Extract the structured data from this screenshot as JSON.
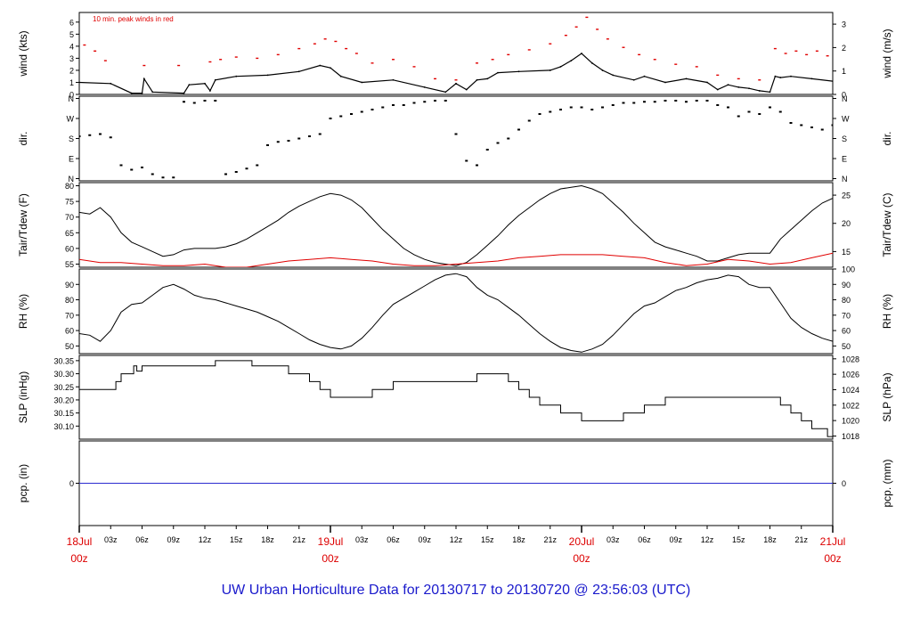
{
  "title": "UW Urban Horticulture Data for 20130717  to  20130720 @ 23:56:03  (UTC)",
  "colors": {
    "frame": "#000000",
    "data": "#000000",
    "peak": "#e00000",
    "dewpoint": "#e00000",
    "precip": "#2b2bd0",
    "date_label": "#dd0000",
    "title": "#1a1acc"
  },
  "x_axis": {
    "range_hours": [
      0,
      72
    ],
    "hour_ticks": [
      {
        "h": 3,
        "label": "03z"
      },
      {
        "h": 6,
        "label": "06z"
      },
      {
        "h": 9,
        "label": "09z"
      },
      {
        "h": 12,
        "label": "12z"
      },
      {
        "h": 15,
        "label": "15z"
      },
      {
        "h": 18,
        "label": "18z"
      },
      {
        "h": 21,
        "label": "21z"
      },
      {
        "h": 27,
        "label": "03z"
      },
      {
        "h": 30,
        "label": "06z"
      },
      {
        "h": 33,
        "label": "09z"
      },
      {
        "h": 36,
        "label": "12z"
      },
      {
        "h": 39,
        "label": "15z"
      },
      {
        "h": 42,
        "label": "18z"
      },
      {
        "h": 45,
        "label": "21z"
      },
      {
        "h": 51,
        "label": "03z"
      },
      {
        "h": 54,
        "label": "06z"
      },
      {
        "h": 57,
        "label": "09z"
      },
      {
        "h": 60,
        "label": "12z"
      },
      {
        "h": 63,
        "label": "15z"
      },
      {
        "h": 66,
        "label": "18z"
      },
      {
        "h": 69,
        "label": "21z"
      }
    ],
    "day_ticks": [
      {
        "h": 0,
        "date": "18Jul",
        "time": "00z"
      },
      {
        "h": 24,
        "date": "19Jul",
        "time": "00z"
      },
      {
        "h": 48,
        "date": "20Jul",
        "time": "00z"
      },
      {
        "h": 72,
        "date": "21Jul",
        "time": "00z"
      }
    ]
  },
  "chart_data": [
    {
      "type": "line",
      "id": "wind",
      "ylabel": "wind (kts)",
      "ylabel_right": "wind (m/s)",
      "annotation": "10 min. peak winds in red",
      "ylim": [
        0,
        6.8
      ],
      "left_ticks": [
        0,
        1,
        2,
        3,
        4,
        5,
        6
      ],
      "right_ticks": [
        {
          "v": 0,
          "label": "0"
        },
        {
          "v": 1.944,
          "label": "1"
        },
        {
          "v": 3.888,
          "label": "2"
        },
        {
          "v": 5.832,
          "label": "3"
        }
      ],
      "series": [
        {
          "role": "mean",
          "style": "line",
          "x": [
            0,
            3,
            5,
            6,
            6.2,
            7,
            10,
            10.5,
            12,
            12.5,
            13,
            15,
            18,
            21,
            23,
            24,
            25,
            27,
            30,
            33,
            35,
            36,
            37,
            38,
            39,
            40,
            42,
            45,
            46,
            47,
            48,
            49,
            50,
            51,
            53,
            54,
            56,
            58,
            60,
            61,
            62,
            63,
            64,
            65,
            66,
            66.5,
            67,
            68,
            70,
            72
          ],
          "y": [
            1.0,
            0.9,
            0.1,
            0.1,
            1.3,
            0.2,
            0.1,
            0.8,
            0.9,
            0.3,
            1.2,
            1.5,
            1.6,
            1.9,
            2.4,
            2.2,
            1.5,
            1.0,
            1.2,
            0.6,
            0.2,
            0.9,
            0.4,
            1.2,
            1.3,
            1.8,
            1.9,
            2.0,
            2.3,
            2.8,
            3.4,
            2.6,
            2.0,
            1.6,
            1.2,
            1.5,
            1.0,
            1.3,
            1.0,
            0.4,
            0.8,
            0.6,
            0.5,
            0.3,
            0.2,
            1.5,
            1.4,
            1.5,
            1.3,
            1.1
          ]
        },
        {
          "role": "peak",
          "style": "points",
          "x": [
            0.5,
            1.5,
            2.5,
            6.2,
            9.5,
            12.5,
            13.5,
            15,
            17,
            19,
            21,
            22.5,
            23.5,
            24.5,
            25.5,
            26.5,
            28,
            30,
            32,
            34,
            36,
            38,
            39.5,
            41,
            43,
            45,
            46.5,
            47.5,
            48.5,
            49.5,
            50.5,
            52,
            53.5,
            55,
            57,
            59,
            61,
            63,
            65,
            66.5,
            67.5,
            68.5,
            69.5,
            70.5,
            71.5
          ],
          "y": [
            4.1,
            3.6,
            2.8,
            2.4,
            2.4,
            2.7,
            2.9,
            3.1,
            3.0,
            3.3,
            3.8,
            4.2,
            4.6,
            4.4,
            3.8,
            3.4,
            2.6,
            2.9,
            2.3,
            1.3,
            1.2,
            2.6,
            2.9,
            3.3,
            3.7,
            4.2,
            4.9,
            5.6,
            6.4,
            5.4,
            4.6,
            3.9,
            3.3,
            2.9,
            2.5,
            2.3,
            1.6,
            1.3,
            1.2,
            3.8,
            3.4,
            3.6,
            3.3,
            3.6,
            3.2
          ]
        }
      ]
    },
    {
      "type": "scatter",
      "id": "dir",
      "ylabel": "dir.",
      "ylabel_right": "dir.",
      "ylim": [
        -10,
        370
      ],
      "left_ticks": [
        {
          "v": 0,
          "label": "N"
        },
        {
          "v": 90,
          "label": "E"
        },
        {
          "v": 180,
          "label": "S"
        },
        {
          "v": 270,
          "label": "W"
        },
        {
          "v": 360,
          "label": "N"
        }
      ],
      "right_ticks": [
        {
          "v": 0,
          "label": "N"
        },
        {
          "v": 90,
          "label": "E"
        },
        {
          "v": 180,
          "label": "S"
        },
        {
          "v": 270,
          "label": "W"
        },
        {
          "v": 360,
          "label": "N"
        }
      ],
      "x": [
        0,
        1,
        2,
        3,
        4,
        5,
        6,
        7,
        8,
        9,
        10,
        11,
        12,
        13,
        14,
        15,
        16,
        17,
        18,
        19,
        20,
        21,
        22,
        23,
        24,
        25,
        26,
        27,
        28,
        29,
        30,
        31,
        32,
        33,
        34,
        35,
        36,
        37,
        38,
        39,
        40,
        41,
        42,
        43,
        44,
        45,
        46,
        47,
        48,
        49,
        50,
        51,
        52,
        53,
        54,
        55,
        56,
        57,
        58,
        59,
        60,
        61,
        62,
        63,
        64,
        65,
        66,
        67,
        68,
        69,
        70,
        71,
        72
      ],
      "y": [
        190,
        195,
        200,
        185,
        60,
        40,
        50,
        20,
        5,
        5,
        345,
        340,
        350,
        350,
        20,
        30,
        45,
        60,
        150,
        165,
        170,
        180,
        190,
        200,
        270,
        280,
        290,
        300,
        310,
        320,
        330,
        330,
        340,
        345,
        350,
        350,
        200,
        80,
        60,
        130,
        160,
        180,
        220,
        260,
        290,
        300,
        310,
        320,
        320,
        310,
        320,
        330,
        340,
        340,
        345,
        345,
        350,
        350,
        345,
        350,
        350,
        330,
        320,
        280,
        300,
        290,
        320,
        300,
        250,
        240,
        230,
        220,
        240
      ]
    },
    {
      "type": "line",
      "id": "temp",
      "ylabel": "Tair/Tdew (F)",
      "ylabel_right": "Tair/Tdew (C)",
      "ylim": [
        54,
        81
      ],
      "left_ticks": [
        55,
        60,
        65,
        70,
        75,
        80
      ],
      "right_ticks": [
        {
          "v": 59,
          "label": "15"
        },
        {
          "v": 68,
          "label": "20"
        },
        {
          "v": 77,
          "label": "25"
        }
      ],
      "series": [
        {
          "role": "air",
          "x": [
            0,
            1,
            2,
            3,
            4,
            5,
            6,
            7,
            8,
            9,
            10,
            11,
            12,
            13,
            14,
            15,
            16,
            17,
            18,
            19,
            20,
            21,
            22,
            23,
            24,
            25,
            26,
            27,
            28,
            29,
            30,
            31,
            32,
            33,
            34,
            35,
            36,
            37,
            38,
            39,
            40,
            41,
            42,
            43,
            44,
            45,
            46,
            47,
            48,
            49,
            50,
            51,
            52,
            53,
            54,
            55,
            56,
            57,
            58,
            59,
            60,
            61,
            62,
            63,
            64,
            65,
            66,
            67,
            68,
            69,
            70,
            71,
            72
          ],
          "y": [
            71.5,
            71,
            73,
            70,
            65,
            62,
            60.5,
            59,
            57.5,
            58,
            59.5,
            60,
            60,
            60,
            60.5,
            61.5,
            63,
            65,
            67,
            69,
            71.5,
            73.5,
            75,
            76.5,
            77.5,
            77,
            75.5,
            73,
            69.5,
            66,
            63,
            60,
            58,
            56.5,
            55.5,
            55,
            54.5,
            55.5,
            58,
            61,
            64,
            67.5,
            70.5,
            73,
            75.5,
            77.5,
            79,
            79.5,
            80,
            79,
            77.5,
            74.5,
            71.5,
            68,
            65,
            62,
            60.5,
            59.5,
            58.5,
            57.5,
            56,
            56,
            57,
            58,
            58.5,
            58.5,
            58.5,
            63,
            66,
            69,
            72,
            74.5,
            76
          ]
        },
        {
          "role": "dewpoint",
          "x": [
            0,
            2,
            4,
            6,
            8,
            10,
            12,
            14,
            16,
            18,
            20,
            22,
            24,
            26,
            28,
            30,
            32,
            34,
            36,
            38,
            40,
            42,
            44,
            46,
            48,
            50,
            52,
            54,
            56,
            58,
            60,
            62,
            64,
            66,
            68,
            70,
            72
          ],
          "y": [
            56.5,
            55.5,
            55.5,
            55,
            54.5,
            54.5,
            55,
            54,
            54,
            55,
            56,
            56.5,
            57,
            56.5,
            56,
            55,
            54.5,
            54.5,
            55,
            55.5,
            56,
            57,
            57.5,
            58,
            58,
            58,
            57.5,
            57,
            55.5,
            54.5,
            55,
            56.5,
            56,
            55,
            55.5,
            57,
            58.5
          ]
        }
      ]
    },
    {
      "type": "line",
      "id": "rh",
      "ylabel": "RH (%)",
      "ylabel_right": "RH (%)",
      "ylim": [
        45,
        100
      ],
      "left_ticks": [
        50,
        60,
        70,
        80,
        90
      ],
      "right_ticks": [
        {
          "v": 50,
          "label": "50"
        },
        {
          "v": 60,
          "label": "60"
        },
        {
          "v": 70,
          "label": "70"
        },
        {
          "v": 80,
          "label": "80"
        },
        {
          "v": 90,
          "label": "90"
        },
        {
          "v": 100,
          "label": "100"
        }
      ],
      "x": [
        0,
        1,
        2,
        3,
        4,
        5,
        6,
        7,
        8,
        9,
        10,
        11,
        12,
        13,
        14,
        15,
        16,
        17,
        18,
        19,
        20,
        21,
        22,
        23,
        24,
        25,
        26,
        27,
        28,
        29,
        30,
        31,
        32,
        33,
        34,
        35,
        36,
        37,
        38,
        39,
        40,
        41,
        42,
        43,
        44,
        45,
        46,
        47,
        48,
        49,
        50,
        51,
        52,
        53,
        54,
        55,
        56,
        57,
        58,
        59,
        60,
        61,
        62,
        63,
        64,
        65,
        66,
        67,
        68,
        69,
        70,
        71,
        72
      ],
      "y": [
        58,
        57,
        53,
        60,
        72,
        77,
        78,
        83,
        88,
        90,
        87,
        83,
        81,
        80,
        78,
        76,
        74,
        72,
        69,
        66,
        62,
        58,
        54,
        51,
        49,
        48,
        50,
        55,
        62,
        70,
        77,
        81,
        85,
        89,
        93,
        96,
        97,
        95,
        88,
        83,
        80,
        75,
        70,
        64,
        58,
        53,
        49,
        47,
        46,
        48,
        51,
        57,
        64,
        71,
        76,
        78,
        82,
        86,
        88,
        91,
        93,
        94,
        96,
        95,
        90,
        88,
        88,
        78,
        68,
        62,
        58,
        55,
        53
      ]
    },
    {
      "type": "line",
      "id": "slp",
      "ylabel": "SLP (inHg)",
      "ylabel_right": "SLP (hPa)",
      "ylim": [
        30.05,
        30.37
      ],
      "left_ticks": [
        {
          "v": 30.1,
          "label": "30.10"
        },
        {
          "v": 30.15,
          "label": "30.15"
        },
        {
          "v": 30.2,
          "label": "30.20"
        },
        {
          "v": 30.25,
          "label": "30.25"
        },
        {
          "v": 30.3,
          "label": "30.30"
        },
        {
          "v": 30.35,
          "label": "30.35"
        }
      ],
      "right_ticks": [
        {
          "v": 30.062,
          "label": "1018"
        },
        {
          "v": 30.121,
          "label": "1020"
        },
        {
          "v": 30.18,
          "label": "1022"
        },
        {
          "v": 30.239,
          "label": "1024"
        },
        {
          "v": 30.298,
          "label": "1026"
        },
        {
          "v": 30.357,
          "label": "1028"
        }
      ],
      "x": [
        0,
        3,
        3.5,
        4,
        5,
        5.2,
        5.5,
        6,
        8,
        10,
        12,
        13,
        15,
        16,
        16.5,
        18,
        20,
        22,
        23,
        24,
        25,
        27,
        28,
        29,
        30,
        31,
        33,
        34,
        36,
        38,
        40,
        41,
        42,
        43,
        44,
        45,
        46,
        47,
        48,
        49,
        50,
        51,
        52,
        53,
        54,
        55,
        56,
        57,
        58,
        59,
        60,
        62,
        63,
        64,
        65,
        66,
        67,
        68,
        69,
        70,
        71,
        71.5,
        72
      ],
      "y": [
        30.24,
        30.24,
        30.27,
        30.3,
        30.3,
        30.33,
        30.31,
        30.33,
        30.33,
        30.33,
        30.33,
        30.35,
        30.35,
        30.35,
        30.33,
        30.33,
        30.3,
        30.27,
        30.24,
        30.21,
        30.21,
        30.21,
        30.24,
        30.24,
        30.27,
        30.27,
        30.27,
        30.27,
        30.27,
        30.3,
        30.3,
        30.27,
        30.24,
        30.21,
        30.18,
        30.18,
        30.15,
        30.15,
        30.12,
        30.12,
        30.12,
        30.12,
        30.15,
        30.15,
        30.18,
        30.18,
        30.21,
        30.21,
        30.21,
        30.21,
        30.21,
        30.21,
        30.21,
        30.21,
        30.21,
        30.21,
        30.18,
        30.15,
        30.12,
        30.09,
        30.09,
        30.06,
        30.06
      ]
    },
    {
      "type": "line",
      "id": "pcp",
      "ylabel": "pcp. (in)",
      "ylabel_right": "pcp. (mm)",
      "ylim": [
        -1,
        1
      ],
      "left_ticks": [
        {
          "v": 0,
          "label": "0"
        }
      ],
      "right_ticks": [
        {
          "v": 0,
          "label": "0"
        }
      ],
      "x": [
        0,
        72
      ],
      "y": [
        0,
        0
      ]
    }
  ]
}
